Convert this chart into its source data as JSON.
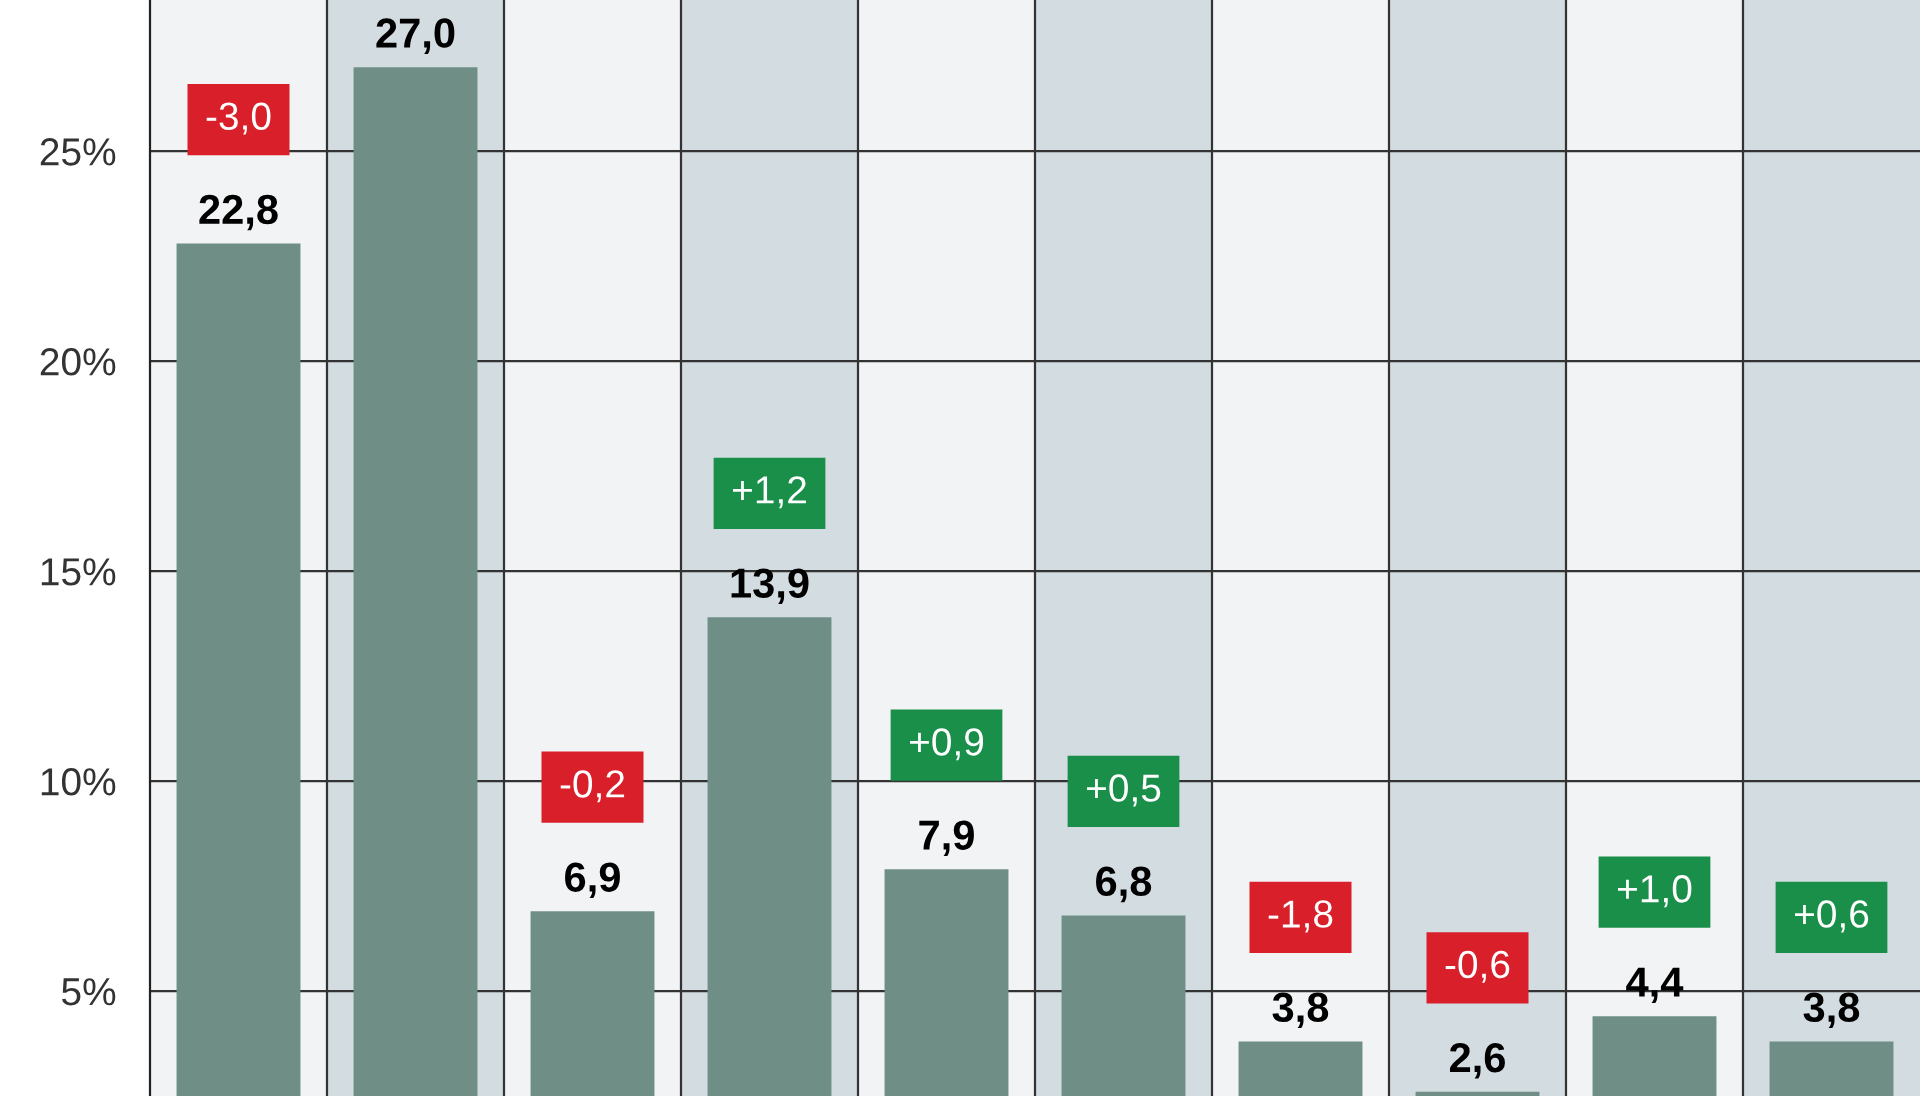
{
  "chart_data": {
    "type": "bar",
    "categories": [
      null,
      null,
      null,
      null,
      null,
      null,
      null,
      null,
      null,
      null
    ],
    "series": [
      {
        "color": "#6f8f86",
        "values": [
          22.8,
          27.0,
          6.9,
          13.9,
          7.9,
          6.8,
          3.8,
          2.6,
          4.4,
          3.8
        ],
        "value_labels": [
          "22,8",
          "27,0",
          "6,9",
          "13,9",
          "7,9",
          "6,8",
          "3,8",
          "2,6",
          "4,4",
          "3,8"
        ]
      }
    ],
    "ylim": [
      2.5,
      28.6
    ],
    "yticks": [
      {
        "value": 5,
        "label": "5%"
      },
      {
        "value": 10,
        "label": "10%"
      },
      {
        "value": 15,
        "label": "15%"
      },
      {
        "value": 20,
        "label": "20%"
      },
      {
        "value": 25,
        "label": "25%"
      }
    ],
    "grid": "y",
    "annotations": [
      "-3,0",
      "-0,2",
      "+1,2",
      "+0,9",
      "+0,5",
      "-1,8",
      "-0,6",
      "+1,0",
      "+0,6"
    ]
  }
}
